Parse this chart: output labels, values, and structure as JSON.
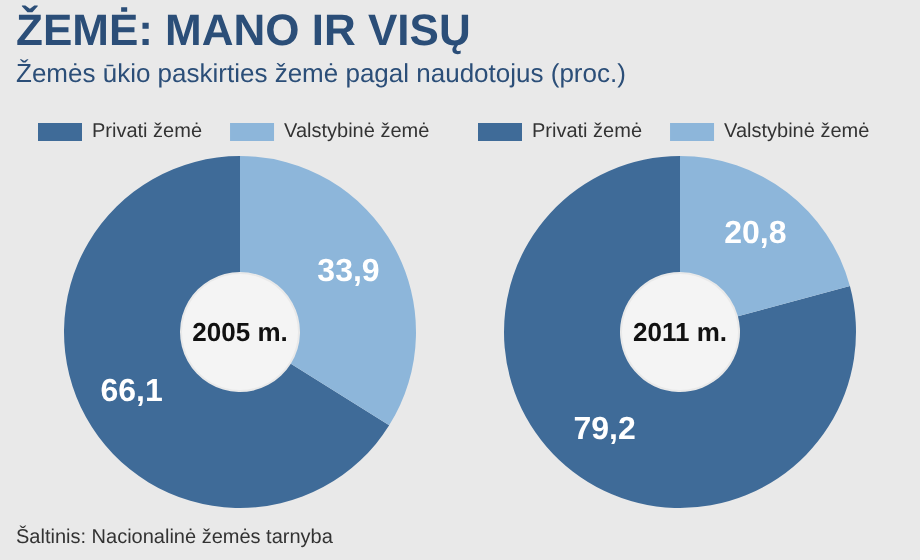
{
  "chart_data": [
    {
      "type": "donut",
      "title": "ŽEMĖ: MANO IR VISŲ",
      "subtitle": "Žemės ūkio paskirties žemė pagal naudotojus (proc.)",
      "categories": [
        "Privati žemė",
        "Valstybinė žemė"
      ],
      "values": [
        66.1,
        33.9
      ],
      "value_labels": [
        "66,1",
        "33,9"
      ],
      "colors": [
        "#3f6b98",
        "#8db6da"
      ],
      "legend": "top",
      "annotations": [
        "2005 m.",
        "Šaltinis: Nacionalinė žemės tarnyba"
      ]
    },
    {
      "type": "donut",
      "categories": [
        "Privati žemė",
        "Valstybinė žemė"
      ],
      "values": [
        79.2,
        20.8
      ],
      "value_labels": [
        "79,2",
        "20,8"
      ],
      "colors": [
        "#3f6b98",
        "#8db6da"
      ],
      "legend": "top",
      "annotations": [
        "2011 m."
      ]
    }
  ]
}
